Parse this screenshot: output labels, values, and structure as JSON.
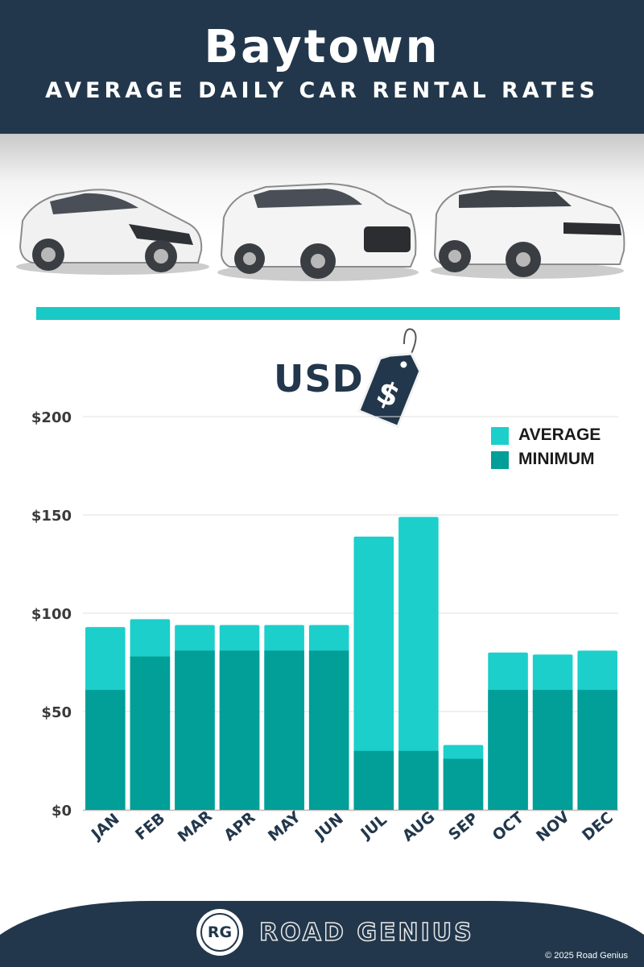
{
  "header": {
    "city": "Baytown",
    "subtitle": "AVERAGE DAILY CAR RENTAL RATES"
  },
  "currency_label": "USD",
  "tag_symbol": "$",
  "colors": {
    "header_bg": "#22374b",
    "average": "#1ccfcb",
    "minimum": "#029e98",
    "divider": "#19c9c5"
  },
  "footer": {
    "logo_text": "RG",
    "brand": "ROAD GENIUS",
    "copyright": "© 2025 Road Genius"
  },
  "chart_data": {
    "type": "bar",
    "stacked": "overlay",
    "categories": [
      "JAN",
      "FEB",
      "MAR",
      "APR",
      "MAY",
      "JUN",
      "JUL",
      "AUG",
      "SEP",
      "OCT",
      "NOV",
      "DEC"
    ],
    "series": [
      {
        "name": "AVERAGE",
        "color": "#1ccfcb",
        "values": [
          93,
          97,
          94,
          94,
          94,
          94,
          139,
          149,
          33,
          80,
          79,
          81
        ]
      },
      {
        "name": "MINIMUM",
        "color": "#029e98",
        "values": [
          61,
          78,
          81,
          81,
          81,
          81,
          30,
          30,
          26,
          61,
          61,
          61
        ]
      }
    ],
    "yticks": [
      "$0",
      "$50",
      "$100",
      "$150",
      "$200"
    ],
    "ytick_values": [
      0,
      50,
      100,
      150,
      200
    ],
    "ylim": [
      0,
      200
    ],
    "grid": true,
    "legend_position": "top-right"
  }
}
